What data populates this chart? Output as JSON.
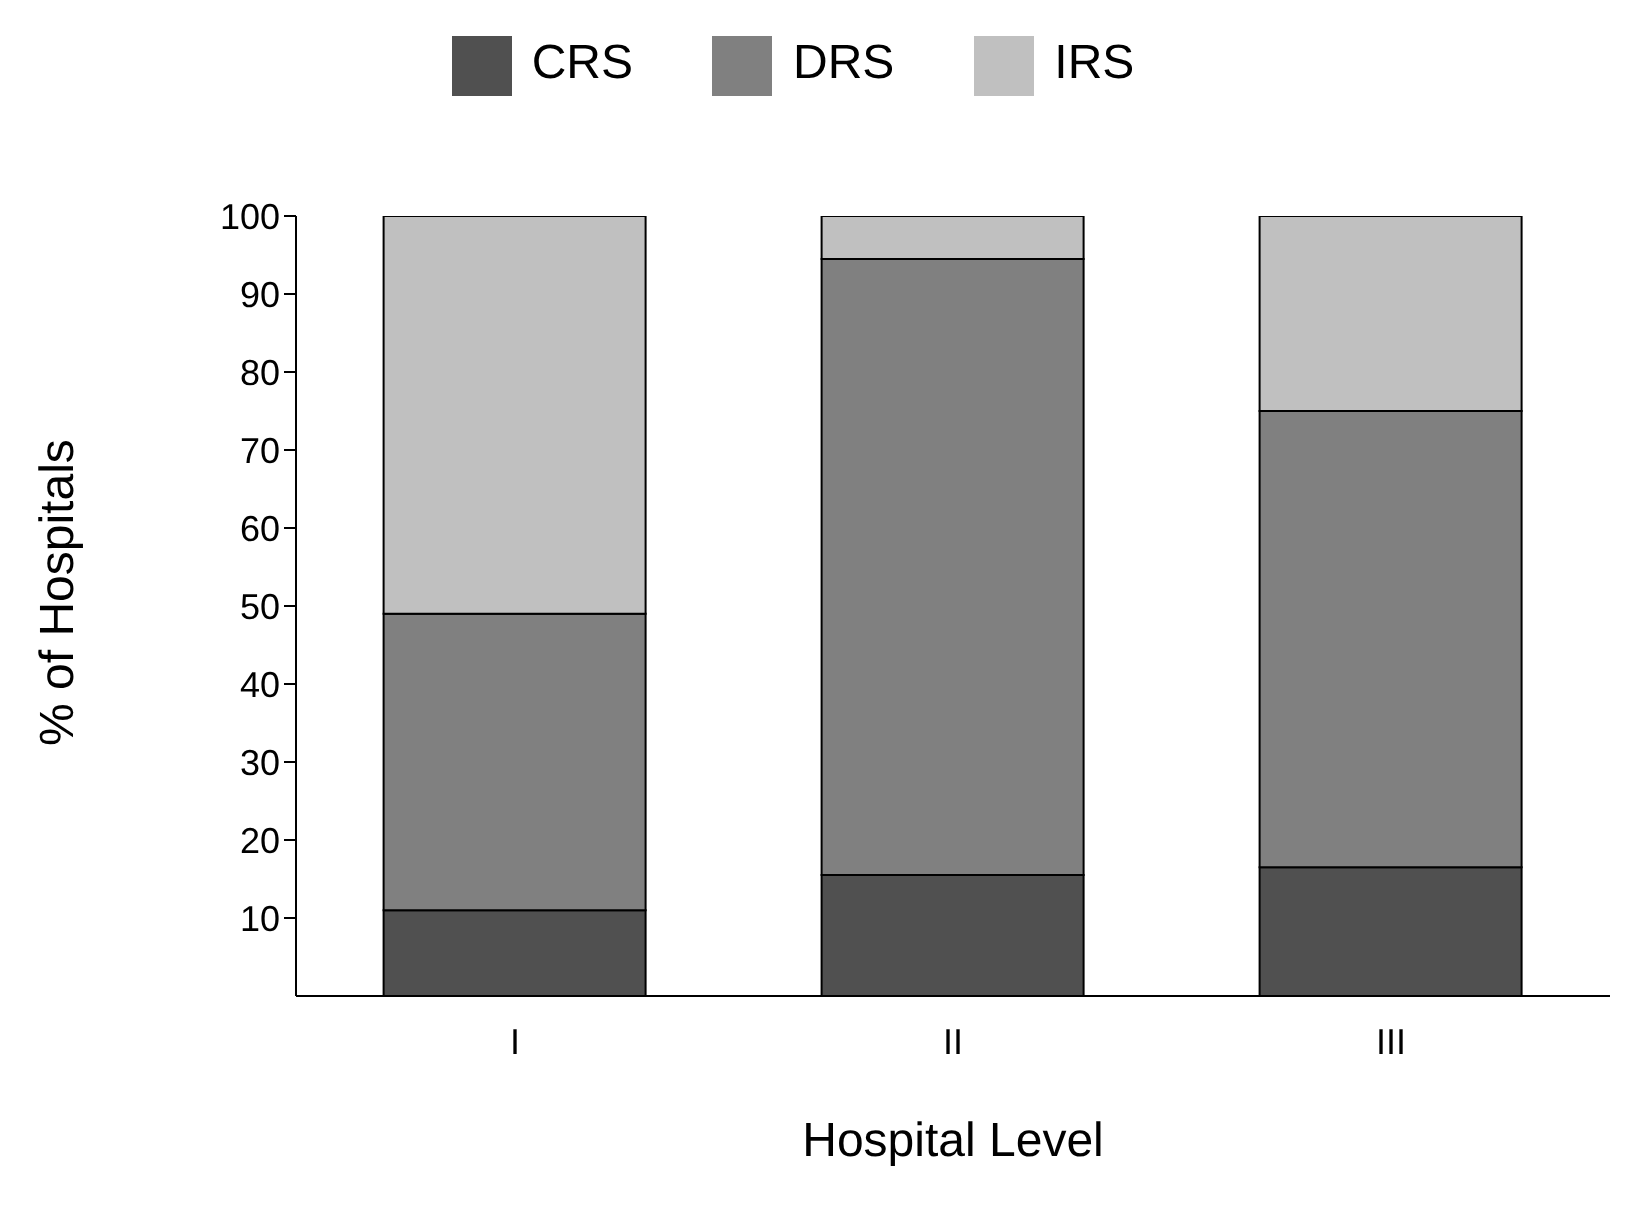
{
  "chart_data": {
    "type": "bar",
    "stacked": true,
    "xlabel": "Hospital Level",
    "ylabel": "% of Hospitals",
    "categories": [
      "I",
      "II",
      "III"
    ],
    "series": [
      {
        "name": "CRS",
        "color": "#505050",
        "values": [
          11,
          15.5,
          16.5
        ]
      },
      {
        "name": "DRS",
        "color": "#808080",
        "values": [
          38,
          79,
          58.5
        ]
      },
      {
        "name": "IRS",
        "color": "#c0c0c0",
        "values": [
          51,
          5.5,
          25
        ]
      }
    ],
    "ylim": [
      0,
      100
    ],
    "yticks": [
      10,
      20,
      30,
      40,
      50,
      60,
      70,
      80,
      90,
      100
    ],
    "legend": "top",
    "grid": false
  }
}
